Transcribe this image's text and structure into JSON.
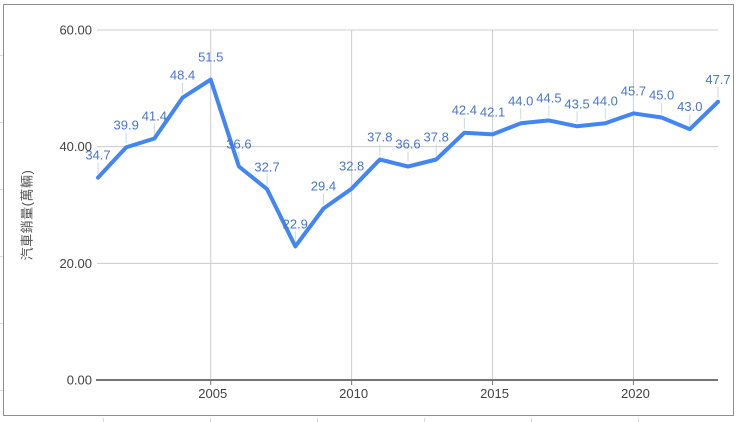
{
  "chart_data": {
    "type": "line",
    "title": "",
    "xlabel": "",
    "ylabel": "汽車銷量(萬輛)",
    "x": [
      2001,
      2002,
      2003,
      2004,
      2005,
      2006,
      2007,
      2008,
      2009,
      2010,
      2011,
      2012,
      2013,
      2014,
      2015,
      2016,
      2017,
      2018,
      2019,
      2020,
      2021,
      2022,
      2023
    ],
    "series": [
      {
        "name": "汽車銷量",
        "values": [
          34.7,
          39.9,
          41.4,
          48.4,
          51.5,
          36.6,
          32.7,
          22.9,
          29.4,
          32.8,
          37.8,
          36.6,
          37.8,
          42.4,
          42.1,
          44.0,
          44.5,
          43.5,
          44.0,
          45.7,
          45.0,
          43.0,
          47.7
        ],
        "color": "#4285f4",
        "annotation_color": "#4776d0"
      }
    ],
    "point_labels": [
      "34.7",
      "39.9",
      "41.4",
      "48.4",
      "51.5",
      "36.6",
      "32.7",
      "22.9",
      "29.4",
      "32.8",
      "37.8",
      "36.6",
      "37.8",
      "42.4",
      "42.1",
      "44.0",
      "44.5",
      "43.5",
      "44.0",
      "45.7",
      "45.0",
      "43.0",
      "47.7"
    ],
    "y_ticks": [
      {
        "value": 0,
        "label": "0.00"
      },
      {
        "value": 20,
        "label": "20.00"
      },
      {
        "value": 40,
        "label": "40.00"
      },
      {
        "value": 60,
        "label": "60.00"
      }
    ],
    "x_ticks": [
      {
        "value": 2005,
        "label": "2005"
      },
      {
        "value": 2010,
        "label": "2010"
      },
      {
        "value": 2015,
        "label": "2015"
      },
      {
        "value": 2020,
        "label": "2020"
      }
    ],
    "ylim": [
      0,
      60
    ],
    "xlim": [
      2001,
      2023
    ],
    "grid": true,
    "legend_position": "none",
    "colors": {
      "gridline": "#cccccc",
      "axis_line": "#757575",
      "axis_text": "#424242",
      "annotation_stem": "#c9d6ee",
      "frame_border": "#8f8f8f",
      "background": "#ffffff"
    }
  }
}
